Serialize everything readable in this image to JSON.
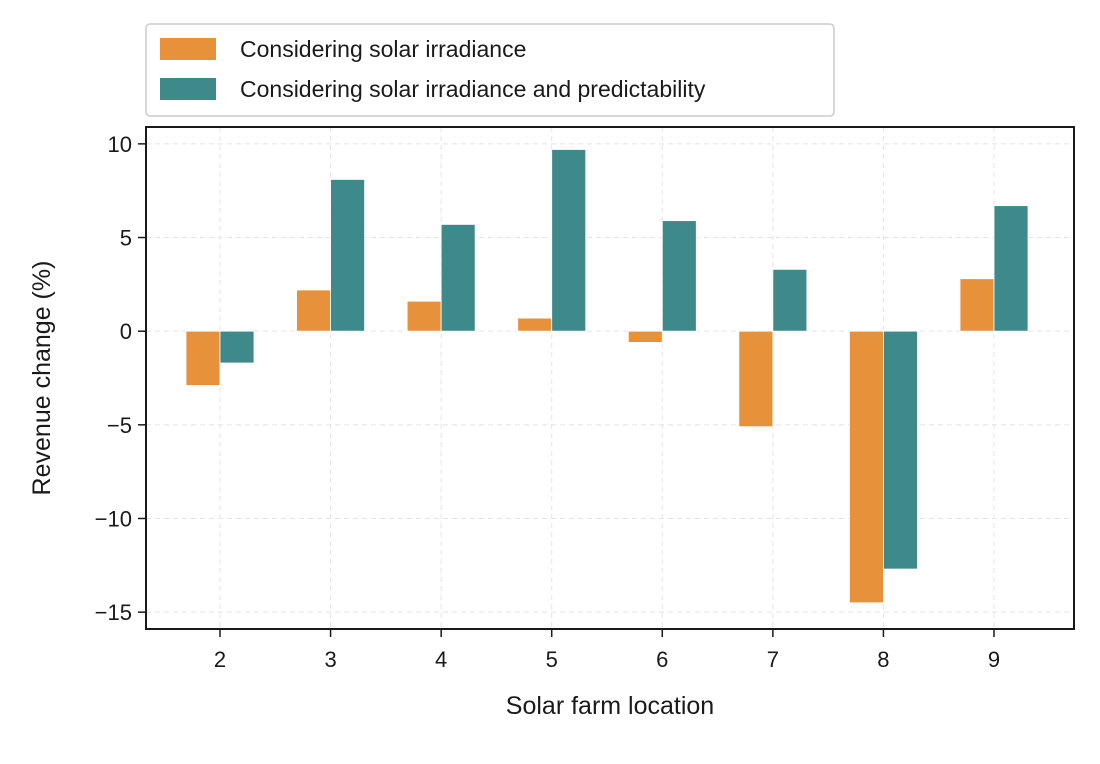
{
  "chart_data": {
    "type": "bar",
    "title": "",
    "xlabel": "Solar farm location",
    "ylabel": "Revenue change (%)",
    "categories": [
      "2",
      "3",
      "4",
      "5",
      "6",
      "7",
      "8",
      "9"
    ],
    "series": [
      {
        "name": "Considering solar irradiance",
        "color": "#E8913B",
        "values": [
          -2.9,
          2.2,
          1.6,
          0.7,
          -0.6,
          -5.1,
          -14.5,
          2.8
        ]
      },
      {
        "name": "Considering solar irradiance and predictability",
        "color": "#3E8A8A",
        "values": [
          -1.7,
          8.1,
          5.7,
          9.7,
          5.9,
          3.3,
          -12.7,
          6.7
        ]
      }
    ],
    "ylim": [
      -15.9,
      10.9
    ],
    "yticks": [
      10,
      5,
      0,
      -5,
      -10,
      -15
    ],
    "ytick_labels": [
      "10",
      "5",
      "0",
      "−5",
      "−10",
      "−15"
    ],
    "grid": true,
    "legend_position": "top-left, outside above plot"
  }
}
